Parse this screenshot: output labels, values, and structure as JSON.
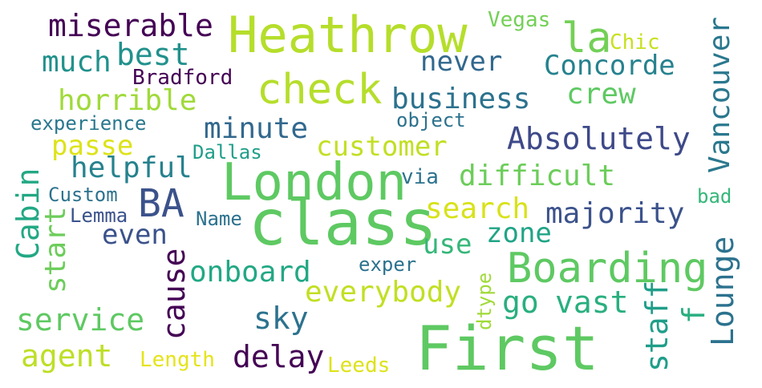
{
  "words": {
    "heathrow": {
      "text": "Heathrow",
      "color": "#b5de2b"
    },
    "first": {
      "text": "First",
      "color": "#5ec962"
    },
    "class": {
      "text": "class",
      "color": "#5ec962"
    },
    "london": {
      "text": "London",
      "color": "#5ec962"
    },
    "check": {
      "text": "check",
      "color": "#b5de2b"
    },
    "boarding": {
      "text": "Boarding",
      "color": "#5ec962"
    },
    "la": {
      "text": "la",
      "color": "#73d056"
    },
    "ba": {
      "text": "BA",
      "color": "#3b528b"
    },
    "miserable": {
      "text": "miserable",
      "color": "#440154"
    },
    "much": {
      "text": "much",
      "color": "#21918c"
    },
    "best": {
      "text": "best",
      "color": "#21918c"
    },
    "bradford": {
      "text": "Bradford",
      "color": "#440154"
    },
    "horrible": {
      "text": "horrible",
      "color": "#a0da39"
    },
    "experience": {
      "text": "experience",
      "color": "#2a788e"
    },
    "minute": {
      "text": "minute",
      "color": "#31688e"
    },
    "passe": {
      "text": "passe",
      "color": "#dde318"
    },
    "dallas": {
      "text": "Dallas",
      "color": "#1f9e89"
    },
    "helpful": {
      "text": "helpful",
      "color": "#26828e"
    },
    "customer": {
      "text": "customer",
      "color": "#c2df23"
    },
    "absolutely": {
      "text": "Absolutely",
      "color": "#3e4989"
    },
    "never": {
      "text": "never",
      "color": "#31688e"
    },
    "concorde": {
      "text": "Concorde",
      "color": "#26828e"
    },
    "business": {
      "text": "business",
      "color": "#2c728e"
    },
    "crew": {
      "text": "crew",
      "color": "#5ec962"
    },
    "object": {
      "text": "object",
      "color": "#2c728e"
    },
    "vegas": {
      "text": "Vegas",
      "color": "#73d056"
    },
    "chic": {
      "text": "Chic",
      "color": "#c8e020"
    },
    "vancouver": {
      "text": "Vancouver",
      "color": "#2a788e"
    },
    "difficult": {
      "text": "difficult",
      "color": "#6ccd5a"
    },
    "via": {
      "text": "via",
      "color": "#2c728e"
    },
    "custom": {
      "text": "Custom",
      "color": "#2c728e"
    },
    "lemma": {
      "text": "Lemma",
      "color": "#3b528b"
    },
    "name": {
      "text": "Name",
      "color": "#2c728e"
    },
    "search": {
      "text": "search",
      "color": "#d8e219"
    },
    "majority": {
      "text": "majority",
      "color": "#3b528b"
    },
    "bad": {
      "text": "bad",
      "color": "#35b779"
    },
    "cabin": {
      "text": "Cabin",
      "color": "#22a884"
    },
    "start": {
      "text": "start",
      "color": "#6ccd5a"
    },
    "even": {
      "text": "even",
      "color": "#3b528b"
    },
    "use": {
      "text": "use",
      "color": "#35b779"
    },
    "zone": {
      "text": "zone",
      "color": "#20a486"
    },
    "cause": {
      "text": "cause",
      "color": "#440154"
    },
    "onboard": {
      "text": "onboard",
      "color": "#22a884"
    },
    "exper": {
      "text": "exper",
      "color": "#2c728e"
    },
    "dtype": {
      "text": "dtype",
      "color": "#a0da39"
    },
    "everybody": {
      "text": "everybody",
      "color": "#c2df23"
    },
    "go": {
      "text": "go",
      "color": "#29af7f"
    },
    "vast": {
      "text": "vast",
      "color": "#29af7f"
    },
    "staff": {
      "text": "staff",
      "color": "#1f9e89"
    },
    "f": {
      "text": "f",
      "color": "#29af7f"
    },
    "lounge": {
      "text": "Lounge",
      "color": "#2c728e"
    },
    "service": {
      "text": "service",
      "color": "#5ec962"
    },
    "sky": {
      "text": "sky",
      "color": "#2c728e"
    },
    "agent": {
      "text": "agent",
      "color": "#bddf26"
    },
    "length": {
      "text": "Length",
      "color": "#e5e419"
    },
    "delay": {
      "text": "delay",
      "color": "#440154"
    },
    "leeds": {
      "text": "Leeds",
      "color": "#dde318"
    }
  }
}
